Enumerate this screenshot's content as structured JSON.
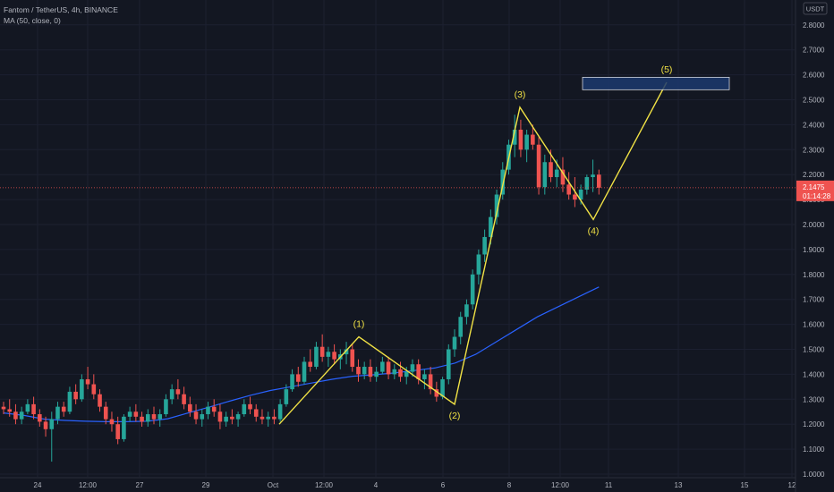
{
  "legend": {
    "symbol_line": "Fantom / TetherUS, 4h, BINANCE",
    "indicator_line": "MA (50, close, 0)"
  },
  "chart_data": {
    "type": "candlestick",
    "currency_label": "USDT",
    "y_ticks": [
      "2.8000",
      "2.7000",
      "2.6000",
      "2.5000",
      "2.4000",
      "2.3000",
      "2.2000",
      "2.1000",
      "2.0000",
      "1.9000",
      "1.8000",
      "1.7000",
      "1.6000",
      "1.5000",
      "1.4000",
      "1.3000",
      "1.2000",
      "1.1000",
      "1.0000"
    ],
    "ylim": [
      0.99,
      2.87
    ],
    "x_ticks": [
      "24",
      "12:00",
      "27",
      "29",
      "Oct",
      "12:00",
      "4",
      "6",
      "8",
      "12:00",
      "11",
      "13",
      "15",
      "12"
    ],
    "last_price": {
      "price": "2.1475",
      "countdown": "01:14:28",
      "value": 2.1475
    },
    "candles": [
      [
        1.27,
        1.29,
        1.24,
        1.26
      ],
      [
        1.26,
        1.3,
        1.23,
        1.25
      ],
      [
        1.25,
        1.28,
        1.2,
        1.22
      ],
      [
        1.22,
        1.27,
        1.2,
        1.25
      ],
      [
        1.25,
        1.3,
        1.24,
        1.28
      ],
      [
        1.28,
        1.31,
        1.22,
        1.24
      ],
      [
        1.24,
        1.26,
        1.19,
        1.21
      ],
      [
        1.21,
        1.23,
        1.15,
        1.18
      ],
      [
        1.18,
        1.25,
        1.05,
        1.22
      ],
      [
        1.22,
        1.29,
        1.2,
        1.27
      ],
      [
        1.27,
        1.29,
        1.23,
        1.25
      ],
      [
        1.25,
        1.35,
        1.24,
        1.33
      ],
      [
        1.33,
        1.36,
        1.28,
        1.3
      ],
      [
        1.3,
        1.4,
        1.29,
        1.38
      ],
      [
        1.38,
        1.43,
        1.34,
        1.36
      ],
      [
        1.36,
        1.4,
        1.3,
        1.32
      ],
      [
        1.32,
        1.34,
        1.25,
        1.27
      ],
      [
        1.27,
        1.29,
        1.2,
        1.22
      ],
      [
        1.22,
        1.25,
        1.17,
        1.2
      ],
      [
        1.2,
        1.23,
        1.12,
        1.14
      ],
      [
        1.14,
        1.24,
        1.13,
        1.23
      ],
      [
        1.23,
        1.27,
        1.21,
        1.25
      ],
      [
        1.25,
        1.28,
        1.21,
        1.23
      ],
      [
        1.23,
        1.25,
        1.19,
        1.21
      ],
      [
        1.21,
        1.26,
        1.19,
        1.24
      ],
      [
        1.24,
        1.27,
        1.2,
        1.22
      ],
      [
        1.22,
        1.26,
        1.19,
        1.24
      ],
      [
        1.24,
        1.32,
        1.23,
        1.3
      ],
      [
        1.3,
        1.36,
        1.28,
        1.34
      ],
      [
        1.34,
        1.38,
        1.3,
        1.32
      ],
      [
        1.32,
        1.35,
        1.26,
        1.28
      ],
      [
        1.28,
        1.31,
        1.23,
        1.25
      ],
      [
        1.25,
        1.28,
        1.2,
        1.22
      ],
      [
        1.22,
        1.26,
        1.19,
        1.24
      ],
      [
        1.24,
        1.29,
        1.22,
        1.27
      ],
      [
        1.27,
        1.3,
        1.23,
        1.25
      ],
      [
        1.25,
        1.28,
        1.18,
        1.21
      ],
      [
        1.21,
        1.25,
        1.19,
        1.23
      ],
      [
        1.23,
        1.26,
        1.2,
        1.22
      ],
      [
        1.22,
        1.25,
        1.19,
        1.24
      ],
      [
        1.24,
        1.3,
        1.23,
        1.28
      ],
      [
        1.28,
        1.31,
        1.24,
        1.26
      ],
      [
        1.26,
        1.28,
        1.21,
        1.23
      ],
      [
        1.23,
        1.26,
        1.2,
        1.22
      ],
      [
        1.22,
        1.25,
        1.19,
        1.23
      ],
      [
        1.23,
        1.26,
        1.2,
        1.22
      ],
      [
        1.22,
        1.3,
        1.21,
        1.28
      ],
      [
        1.28,
        1.36,
        1.27,
        1.34
      ],
      [
        1.34,
        1.42,
        1.33,
        1.4
      ],
      [
        1.4,
        1.43,
        1.35,
        1.37
      ],
      [
        1.37,
        1.47,
        1.36,
        1.45
      ],
      [
        1.45,
        1.5,
        1.41,
        1.43
      ],
      [
        1.43,
        1.53,
        1.42,
        1.51
      ],
      [
        1.51,
        1.56,
        1.45,
        1.47
      ],
      [
        1.47,
        1.51,
        1.43,
        1.49
      ],
      [
        1.49,
        1.52,
        1.44,
        1.46
      ],
      [
        1.46,
        1.5,
        1.42,
        1.48
      ],
      [
        1.48,
        1.53,
        1.44,
        1.5
      ],
      [
        1.5,
        1.52,
        1.41,
        1.43
      ],
      [
        1.43,
        1.46,
        1.37,
        1.4
      ],
      [
        1.4,
        1.45,
        1.38,
        1.43
      ],
      [
        1.43,
        1.46,
        1.37,
        1.39
      ],
      [
        1.39,
        1.43,
        1.37,
        1.41
      ],
      [
        1.41,
        1.47,
        1.4,
        1.45
      ],
      [
        1.45,
        1.47,
        1.38,
        1.4
      ],
      [
        1.4,
        1.44,
        1.38,
        1.42
      ],
      [
        1.42,
        1.45,
        1.37,
        1.39
      ],
      [
        1.39,
        1.43,
        1.36,
        1.41
      ],
      [
        1.41,
        1.46,
        1.39,
        1.44
      ],
      [
        1.44,
        1.46,
        1.36,
        1.38
      ],
      [
        1.38,
        1.42,
        1.34,
        1.4
      ],
      [
        1.4,
        1.43,
        1.32,
        1.34
      ],
      [
        1.34,
        1.37,
        1.29,
        1.31
      ],
      [
        1.31,
        1.39,
        1.3,
        1.38
      ],
      [
        1.38,
        1.52,
        1.36,
        1.5
      ],
      [
        1.5,
        1.58,
        1.47,
        1.55
      ],
      [
        1.55,
        1.65,
        1.52,
        1.63
      ],
      [
        1.63,
        1.7,
        1.6,
        1.68
      ],
      [
        1.68,
        1.82,
        1.66,
        1.8
      ],
      [
        1.8,
        1.9,
        1.76,
        1.88
      ],
      [
        1.88,
        1.98,
        1.85,
        1.95
      ],
      [
        1.95,
        2.06,
        1.92,
        2.03
      ],
      [
        2.03,
        2.14,
        2.0,
        2.12
      ],
      [
        2.12,
        2.25,
        2.1,
        2.22
      ],
      [
        2.22,
        2.34,
        2.2,
        2.32
      ],
      [
        2.32,
        2.44,
        2.27,
        2.38
      ],
      [
        2.38,
        2.42,
        2.27,
        2.3
      ],
      [
        2.3,
        2.38,
        2.25,
        2.36
      ],
      [
        2.36,
        2.4,
        2.3,
        2.32
      ],
      [
        2.32,
        2.35,
        2.12,
        2.15
      ],
      [
        2.15,
        2.28,
        2.12,
        2.25
      ],
      [
        2.25,
        2.3,
        2.17,
        2.19
      ],
      [
        2.19,
        2.26,
        2.15,
        2.22
      ],
      [
        2.22,
        2.27,
        2.13,
        2.16
      ],
      [
        2.16,
        2.21,
        2.1,
        2.12
      ],
      [
        2.12,
        2.19,
        2.07,
        2.1
      ],
      [
        2.1,
        2.16,
        2.08,
        2.14
      ],
      [
        2.14,
        2.2,
        2.12,
        2.19
      ],
      [
        2.19,
        2.26,
        2.13,
        2.2
      ],
      [
        2.2,
        2.22,
        2.12,
        2.1475
      ]
    ],
    "ma_series": {
      "name": "MA (50, close, 0)",
      "color": "#2962ff",
      "values": [
        1.245,
        1.235,
        1.22,
        1.215,
        1.212,
        1.21,
        1.21,
        1.212,
        1.222,
        1.245,
        1.268,
        1.292,
        1.315,
        1.335,
        1.35,
        1.365,
        1.38,
        1.392,
        1.398,
        1.405,
        1.415,
        1.425,
        1.445,
        1.48,
        1.53,
        1.58,
        1.63,
        1.67,
        1.71,
        1.75
      ]
    },
    "elliott_wave": {
      "color": "#f1e245",
      "labels": [
        "(1)",
        "(2)",
        "(3)",
        "(4)",
        "(5)"
      ],
      "points": [
        1.2,
        1.55,
        1.28,
        2.47,
        2.02,
        2.57
      ]
    },
    "target_box": {
      "price_top": 2.59,
      "price_bottom": 2.54,
      "fill": "#1c3a6e",
      "stroke": "#d1d4dc"
    },
    "colors": {
      "background": "#131722",
      "up": "#26a69a",
      "down": "#ef5350",
      "grid": "#1c2030",
      "axis_text": "#b2b5be"
    },
    "grid": true
  }
}
